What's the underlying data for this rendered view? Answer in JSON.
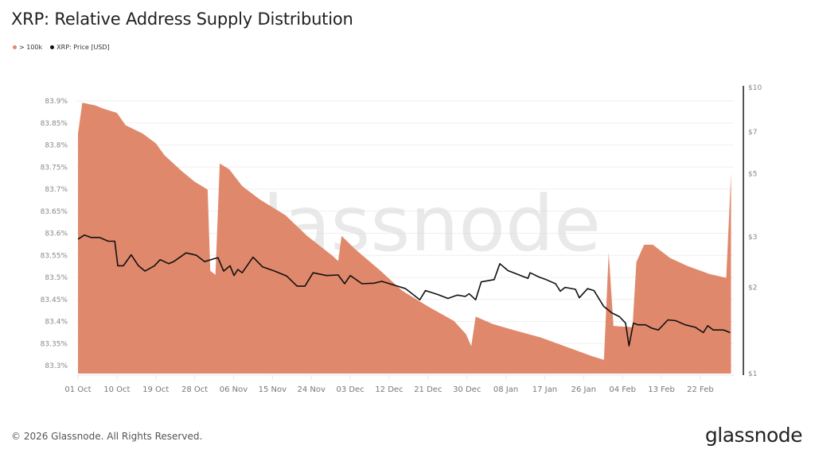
{
  "header": {
    "title": "XRP: Relative Address Supply Distribution"
  },
  "legend": [
    {
      "label": "> 100k",
      "color": "#E0886B"
    },
    {
      "label": "XRP: Price [USD]",
      "color": "#111111"
    }
  ],
  "watermark": "glassnode",
  "footer": {
    "copyright": "© 2026 Glassnode. All Rights Reserved.",
    "brand": "glassnode"
  },
  "chart_data": {
    "type": "area",
    "title": "XRP: Relative Address Supply Distribution",
    "xlabel": "",
    "ylabel": "",
    "grid": true,
    "legend_position": "top-left",
    "x_tick_labels": [
      "01 Oct",
      "10 Oct",
      "19 Oct",
      "28 Oct",
      "06 Nov",
      "15 Nov",
      "24 Nov",
      "03 Dec",
      "12 Dec",
      "21 Dec",
      "30 Dec",
      "08 Jan",
      "17 Jan",
      "26 Jan",
      "04 Feb",
      "13 Feb",
      "22 Feb"
    ],
    "y_left": {
      "ticks": [
        "83.3%",
        "83.35%",
        "83.4%",
        "83.45%",
        "83.5%",
        "83.55%",
        "83.6%",
        "83.65%",
        "83.7%",
        "83.75%",
        "83.8%",
        "83.85%",
        "83.9%"
      ],
      "range": [
        83.29,
        83.9
      ]
    },
    "y_right": {
      "ticks": [
        "$1",
        "$2",
        "$3",
        "$5",
        "$7",
        "$10"
      ],
      "scale": "log",
      "range": [
        1,
        10
      ]
    },
    "series": [
      {
        "name": "> 100k",
        "type": "area",
        "axis": "left",
        "color": "#E0886B",
        "x_day_offset_from_01_Oct": [
          0,
          1,
          4,
          6,
          9,
          11,
          15,
          18,
          20,
          24,
          27,
          30,
          30.6,
          31.8,
          32.8,
          35,
          38,
          42,
          48,
          53,
          59,
          60.2,
          61,
          64,
          70,
          75,
          81,
          87,
          89.8,
          91,
          92,
          96,
          101,
          107,
          114,
          119,
          121.7,
          122.8,
          123.9,
          128.3,
          129.2,
          131,
          133,
          137,
          141,
          146,
          150,
          151.1
        ],
        "values_pct": [
          83.826,
          83.896,
          83.89,
          83.882,
          83.873,
          83.845,
          83.826,
          83.804,
          83.777,
          83.741,
          83.717,
          83.699,
          83.515,
          83.506,
          83.758,
          83.745,
          83.707,
          83.677,
          83.641,
          83.594,
          83.548,
          83.537,
          83.594,
          83.565,
          83.515,
          83.47,
          83.434,
          83.401,
          83.371,
          83.344,
          83.411,
          83.394,
          83.38,
          83.364,
          83.339,
          83.321,
          83.313,
          83.556,
          83.39,
          83.387,
          83.535,
          83.574,
          83.574,
          83.544,
          83.526,
          83.508,
          83.499,
          83.736
        ]
      },
      {
        "name": "XRP: Price [USD]",
        "type": "line",
        "axis": "right",
        "color": "#111111",
        "x_day_offset_from_01_Oct": [
          0,
          1.5,
          3,
          5,
          7,
          8.5,
          9.2,
          10.5,
          12.3,
          14,
          15.5,
          17.7,
          19,
          21,
          22.1,
          25,
          27.4,
          29.3,
          31.5,
          32.4,
          33.7,
          35.2,
          36.1,
          37,
          38,
          40.5,
          42.7,
          45.5,
          48.3,
          50.7,
          52.5,
          54.4,
          57.5,
          60.2,
          61.7,
          63,
          65.7,
          68.5,
          70.3,
          74,
          75.8,
          77.7,
          79.1,
          80.4,
          83.2,
          85.6,
          87.8,
          89.6,
          90.5,
          92,
          93.3,
          96.3,
          97.6,
          99.5,
          104.1,
          104.6,
          106.8,
          108.3,
          110.5,
          111.6,
          112.7,
          115.1,
          116,
          117.9,
          119.4,
          121.6,
          123.5,
          125.3,
          126.7,
          127.5,
          128.5,
          129.6,
          131.3,
          132.8,
          134.3,
          136.5,
          138.3,
          140.5,
          142.9,
          144.7,
          145.7,
          147,
          149.4,
          150.9
        ],
        "values_usd": [
          2.95,
          3.05,
          2.99,
          2.99,
          2.9,
          2.9,
          2.38,
          2.38,
          2.6,
          2.38,
          2.28,
          2.38,
          2.5,
          2.42,
          2.46,
          2.64,
          2.59,
          2.46,
          2.52,
          2.54,
          2.28,
          2.38,
          2.2,
          2.31,
          2.25,
          2.55,
          2.36,
          2.28,
          2.19,
          2.02,
          2.02,
          2.25,
          2.2,
          2.21,
          2.06,
          2.2,
          2.06,
          2.07,
          2.1,
          2.02,
          1.98,
          1.88,
          1.81,
          1.95,
          1.89,
          1.83,
          1.88,
          1.86,
          1.9,
          1.81,
          2.09,
          2.13,
          2.42,
          2.29,
          2.15,
          2.25,
          2.17,
          2.13,
          2.06,
          1.94,
          2.0,
          1.97,
          1.84,
          1.98,
          1.95,
          1.72,
          1.63,
          1.58,
          1.5,
          1.25,
          1.5,
          1.48,
          1.48,
          1.44,
          1.42,
          1.54,
          1.53,
          1.48,
          1.45,
          1.39,
          1.47,
          1.42,
          1.42,
          1.39
        ]
      }
    ]
  }
}
